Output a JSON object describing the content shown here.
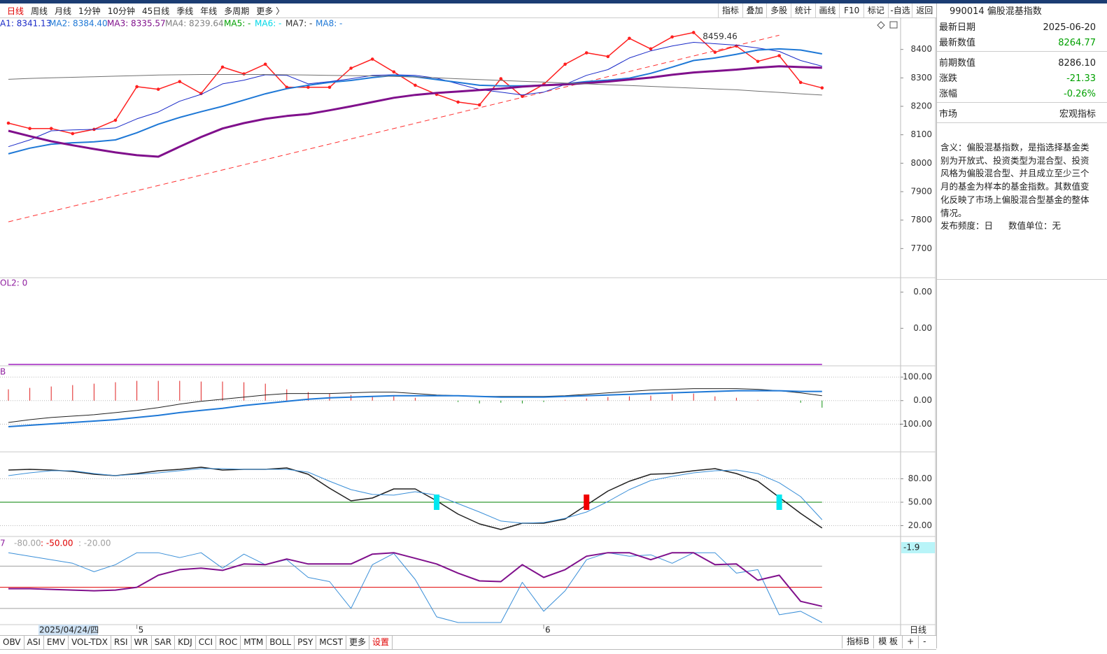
{
  "toolbar": {
    "periods": [
      "日线",
      "周线",
      "月线",
      "1分钟",
      "10分钟",
      "45日线",
      "季线",
      "年线",
      "多周期",
      "更多 〉"
    ],
    "tools": [
      "指标",
      "叠加",
      "多股",
      "统计",
      "画线",
      "F10",
      "标记",
      "-自选",
      "返回"
    ]
  },
  "bottom_tabs": {
    "indicators": [
      "OBV",
      "ASI",
      "EMV",
      "VOL-TDX",
      "RSI",
      "WR",
      "SAR",
      "KDJ",
      "CCI",
      "ROC",
      "MTM",
      "BOLL",
      "PSY",
      "MCST",
      "更多",
      "设置"
    ],
    "period_label": "日线",
    "right": [
      "指标B",
      "模 板",
      "+",
      "-"
    ]
  },
  "cursor_date": "2025/04/24/四",
  "info_panel": {
    "title": "990014 偏股混基指数",
    "rows": [
      [
        "最新日期",
        "2025-06-20"
      ],
      [
        "最新数值",
        "8264.77"
      ],
      [
        "前期数值",
        "8286.10"
      ],
      [
        "涨跌",
        "-21.33"
      ],
      [
        "涨幅",
        "-0.26%"
      ],
      [
        "市场",
        "宏观指标"
      ]
    ],
    "description": "含义：偏股混基指数，是指选择基金类别为开放式、投资类型为混合型、投资风格为偏股混合型、并且成立至少三个月的基金为样本的基金指数。其数值变化反映了市场上偏股混合型基金的整体情况。",
    "footer": [
      "发布频度：日",
      "数值单位：无"
    ]
  },
  "chart_data": [
    {
      "type": "line",
      "categories": [
        null,
        null,
        null,
        null,
        null,
        null,
        "5",
        null,
        null,
        null,
        null,
        null,
        null,
        null,
        null,
        null,
        null,
        null,
        null,
        null,
        null,
        null,
        null,
        null,
        null,
        "6",
        null,
        null,
        null,
        null,
        null,
        null,
        null,
        null,
        null,
        null,
        null,
        null,
        null
      ],
      "ylim": [
        7600,
        8500
      ],
      "yticks": [
        {
          "value": 7700,
          "label": "7700"
        },
        {
          "value": 7800,
          "label": "7800"
        },
        {
          "value": 7900,
          "label": "7900"
        },
        {
          "value": 8000,
          "label": "8000"
        },
        {
          "value": 8100,
          "label": "8100"
        },
        {
          "value": 8200,
          "label": "8200"
        },
        {
          "value": 8300,
          "label": "8300"
        },
        {
          "value": 8400,
          "label": "8400"
        }
      ],
      "grid": false,
      "legend": [
        "A1: 8341.13",
        "MA2: 8384.40",
        "MA3: 8335.57",
        "MA4: 8239.64",
        "MA5: -",
        "MA6: -",
        "MA7: -",
        "MA8: -"
      ],
      "legend_colors": [
        "#1a2ac8",
        "#1e78d6",
        "#80108c",
        "#808080",
        "#00a000",
        "#00d8e8",
        "#303030",
        "#1e78d6"
      ],
      "trendline": {
        "values": [
          7794,
          8450
        ],
        "color": "#ff3030"
      },
      "max_label": "8459.46",
      "series": [
        {
          "kind": "line",
          "color": "#ff2020",
          "width": 1.5,
          "markers": true,
          "values": [
            8141,
            8122,
            8122,
            8104,
            8119,
            8151,
            8269,
            8260,
            8287,
            8245,
            8338,
            8314,
            8348,
            8267,
            8267,
            8267,
            8334,
            8366,
            8321,
            8274,
            8242,
            8215,
            8205,
            8297,
            8235,
            8277,
            8348,
            8388,
            8375,
            8439,
            8402,
            8444,
            8459.46,
            8390,
            8412,
            8358,
            8378,
            8284,
            8264.77
          ]
        },
        {
          "kind": "line",
          "color": "#1a2ac8",
          "width": 1,
          "values": [
            8058,
            8082,
            8114,
            8117,
            8119,
            8124,
            8156,
            8180,
            8218,
            8242,
            8279,
            8292,
            8311,
            8309,
            8279,
            8287,
            8297,
            8309,
            8311,
            8309,
            8299,
            8279,
            8259,
            8250,
            8240,
            8250,
            8277,
            8309,
            8329,
            8370,
            8395,
            8412,
            8425,
            8420,
            8415,
            8405,
            8393,
            8361,
            8341.13
          ]
        },
        {
          "kind": "line",
          "color": "#1e78d6",
          "width": 2,
          "values": [
            8033,
            8053,
            8067,
            8072,
            8075,
            8082,
            8107,
            8137,
            8161,
            8181,
            8200,
            8222,
            8244,
            8262,
            8274,
            8284,
            8291,
            8301,
            8309,
            8304,
            8294,
            8284,
            8274,
            8272,
            8272,
            8274,
            8279,
            8287,
            8292,
            8299,
            8316,
            8338,
            8361,
            8370,
            8383,
            8398,
            8402,
            8398,
            8384.4
          ]
        },
        {
          "kind": "line",
          "color": "#80108c",
          "width": 3,
          "values": [
            8114,
            8095,
            8077,
            8063,
            8050,
            8038,
            8028,
            8023,
            8058,
            8092,
            8122,
            8141,
            8156,
            8166,
            8173,
            8186,
            8200,
            8215,
            8230,
            8240,
            8247,
            8252,
            8257,
            8262,
            8269,
            8274,
            8277,
            8282,
            8287,
            8294,
            8301,
            8311,
            8319,
            8324,
            8329,
            8336,
            8341,
            8338,
            8335.57
          ]
        },
        {
          "kind": "line",
          "color": "#707070",
          "width": 1,
          "values": [
            8295,
            8298,
            8300,
            8302,
            8304,
            8306,
            8308,
            8310,
            8311,
            8312,
            8312,
            8312,
            8312,
            8311,
            8310,
            8309,
            8308,
            8307,
            8305,
            8303,
            8300,
            8297,
            8294,
            8291,
            8288,
            8285,
            8282,
            8279,
            8276,
            8273,
            8270,
            8267,
            8264,
            8261,
            8258,
            8253,
            8249,
            8244,
            8239.64
          ]
        }
      ]
    },
    {
      "type": "line",
      "indicator_label": "OL2: 0",
      "label_color": "#9020a0",
      "ylim": [
        0,
        0.005
      ],
      "yticks": [
        {
          "value": 0.0042,
          "label": "0.00"
        },
        {
          "value": 0.0021,
          "label": "0.00"
        }
      ],
      "grid": false,
      "series": [
        {
          "kind": "line",
          "color": "#a020c0",
          "width": 1.5,
          "values": [
            0,
            0,
            0,
            0,
            0,
            0,
            0,
            0,
            0,
            0,
            0,
            0,
            0,
            0,
            0,
            0,
            0,
            0,
            0,
            0,
            0,
            0,
            0,
            0,
            0,
            0,
            0,
            0,
            0,
            0,
            0,
            0,
            0,
            0,
            0,
            0,
            0,
            0,
            0
          ]
        }
      ]
    },
    {
      "type": "bar",
      "indicator_label": "B",
      "label_color": "#9020a0",
      "ylim": [
        -215,
        142
      ],
      "yticks": [
        {
          "value": 100,
          "label": "100.00"
        },
        {
          "value": 0,
          "label": "0.00"
        },
        {
          "value": -100,
          "label": "-100.00"
        }
      ],
      "grid": true,
      "series": [
        {
          "kind": "stick",
          "up_color": "#e02020",
          "down_color": "#109010",
          "values": [
            48,
            54,
            60,
            66,
            72,
            78,
            84,
            84,
            84,
            81,
            81,
            78,
            72,
            48,
            36,
            30,
            24,
            18,
            18,
            12,
            0,
            -6,
            -12,
            -9,
            -12,
            -6,
            3,
            9,
            15,
            18,
            21,
            27,
            30,
            18,
            12,
            3,
            0,
            -9,
            -30
          ]
        },
        {
          "kind": "line",
          "color": "#202020",
          "width": 1,
          "values": [
            -93,
            -81,
            -72,
            -66,
            -60,
            -51,
            -42,
            -30,
            -15,
            -3,
            6,
            15,
            24,
            30,
            30,
            30,
            33,
            36,
            36,
            30,
            24,
            21,
            18,
            18,
            18,
            18,
            21,
            27,
            33,
            39,
            45,
            48,
            51,
            51,
            51,
            48,
            42,
            33,
            21
          ]
        },
        {
          "kind": "line",
          "color": "#1e78d6",
          "width": 2,
          "values": [
            -111,
            -105,
            -99,
            -93,
            -87,
            -81,
            -72,
            -63,
            -51,
            -42,
            -33,
            -21,
            -12,
            -3,
            6,
            12,
            15,
            18,
            21,
            21,
            21,
            21,
            18,
            15,
            15,
            15,
            18,
            21,
            24,
            27,
            30,
            33,
            36,
            39,
            42,
            42,
            42,
            39,
            39
          ]
        }
      ]
    },
    {
      "type": "line",
      "ylim": [
        7,
        112.7
      ],
      "yticks": [
        {
          "value": 80,
          "label": "80.00"
        },
        {
          "value": 50,
          "label": "50.00"
        },
        {
          "value": 20,
          "label": "20.00"
        }
      ],
      "grid": true,
      "ref_lines": [
        {
          "value": 50,
          "color": "#008000"
        }
      ],
      "series": [
        {
          "kind": "line",
          "color": "#202020",
          "width": 1.5,
          "values": [
            91.2,
            92.1,
            91.2,
            89.4,
            85.8,
            84.0,
            86.7,
            90.3,
            92.1,
            94.8,
            91.2,
            92.1,
            92.1,
            93.9,
            85.8,
            67.9,
            51.8,
            55.4,
            67.0,
            67.0,
            51.8,
            34.8,
            22.2,
            15.1,
            23.1,
            23.1,
            28.5,
            46.4,
            64.3,
            76.9,
            85.8,
            86.7,
            90.3,
            93.0,
            86.7,
            76.9,
            56.3,
            35.7,
            16.9
          ]
        },
        {
          "kind": "line",
          "color": "#3a8fd8",
          "width": 1,
          "values": [
            84.0,
            87.6,
            90.3,
            90.3,
            86.7,
            84.0,
            85.8,
            87.6,
            90.3,
            93.0,
            93.0,
            92.1,
            92.1,
            92.1,
            88.5,
            76.9,
            66.1,
            59.9,
            59.0,
            63.4,
            59.0,
            48.2,
            37.5,
            25.9,
            23.1,
            24.0,
            29.4,
            37.5,
            50.9,
            66.1,
            77.8,
            83.1,
            87.6,
            90.3,
            91.2,
            86.7,
            74.9,
            57.2,
            27.6
          ]
        },
        {
          "kind": "marker",
          "color": "#00e8f0",
          "values": [
            null,
            null,
            null,
            null,
            null,
            null,
            null,
            null,
            null,
            null,
            null,
            null,
            null,
            null,
            null,
            null,
            null,
            null,
            null,
            null,
            50,
            null,
            null,
            null,
            null,
            null,
            null,
            null,
            null,
            null,
            null,
            null,
            null,
            null,
            null,
            null,
            50,
            null,
            null
          ]
        },
        {
          "kind": "marker",
          "color": "#f00000",
          "values": [
            null,
            null,
            null,
            null,
            null,
            null,
            null,
            null,
            null,
            null,
            null,
            null,
            null,
            null,
            null,
            null,
            null,
            null,
            null,
            null,
            null,
            null,
            null,
            null,
            null,
            null,
            null,
            50,
            null,
            null,
            null,
            null,
            null,
            null,
            null,
            null,
            null,
            null,
            null
          ]
        }
      ]
    },
    {
      "type": "line",
      "indicator_label": "7",
      "label_color": "#9020a0",
      "current_label": "-1.9",
      "ylim": [
        -102,
        19
      ],
      "yticks": [],
      "grid": false,
      "ref_lines": [
        {
          "value": -80,
          "label": "-80.00",
          "color": "#a0a0a0"
        },
        {
          "value": -50,
          "label": ": -50.00",
          "color": "#e00000"
        },
        {
          "value": -20,
          "label": ": -20.00",
          "color": "#a0a0a0"
        }
      ],
      "series": [
        {
          "kind": "line",
          "color": "#3a8fd8",
          "width": 1,
          "values": [
            -1,
            -6,
            -11,
            -16,
            -28,
            -18,
            -1,
            -1,
            -8,
            -1,
            -23,
            -3,
            -18,
            -11,
            -36,
            -42,
            -80,
            -18,
            -2,
            -39,
            -92,
            -100,
            -100,
            -100,
            -43,
            -84,
            -55,
            -11,
            -1,
            -6,
            -4,
            -16,
            -1,
            -1,
            -30,
            -25,
            -89,
            -84,
            -100
          ]
        },
        {
          "kind": "line",
          "color": "#80108c",
          "width": 2,
          "values": [
            -52,
            -52,
            -53,
            -54,
            -55,
            -54,
            -50,
            -33,
            -25,
            -23,
            -26,
            -17,
            -18,
            -10,
            -17,
            -17,
            -17,
            -3,
            -1,
            -9,
            -17,
            -30,
            -41,
            -42,
            -18,
            -36,
            -25,
            -6,
            -1,
            -1,
            -11,
            -1,
            -1,
            -18,
            -17,
            -40,
            -33,
            -70,
            -77
          ]
        }
      ]
    }
  ]
}
